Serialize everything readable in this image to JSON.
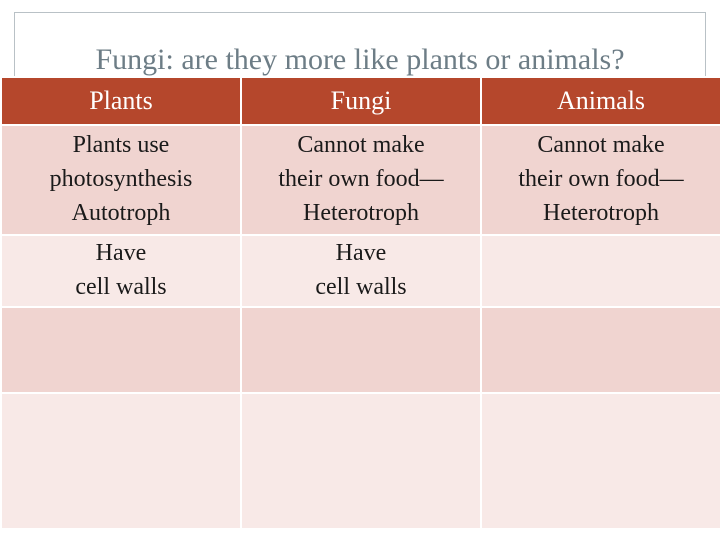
{
  "title": "Fungi: are they more like plants or animals?",
  "headers": [
    "Plants",
    "Fungi",
    "Animals"
  ],
  "rows": [
    [
      [
        "Plants use",
        "photosynthesis",
        "Autotroph"
      ],
      [
        "Cannot make",
        "their own food—",
        "Heterotroph"
      ],
      [
        "Cannot make",
        "their own food—",
        "Heterotroph"
      ]
    ],
    [
      [
        "Have",
        "cell walls"
      ],
      [
        "Have",
        "cell walls"
      ],
      []
    ],
    [
      [],
      [],
      []
    ],
    [
      [],
      [],
      []
    ]
  ],
  "colors": {
    "header_bg": "#b5472c",
    "row_dark": "#f0d4d0",
    "row_light": "#f8e9e7",
    "title_text": "#6d7d86"
  }
}
